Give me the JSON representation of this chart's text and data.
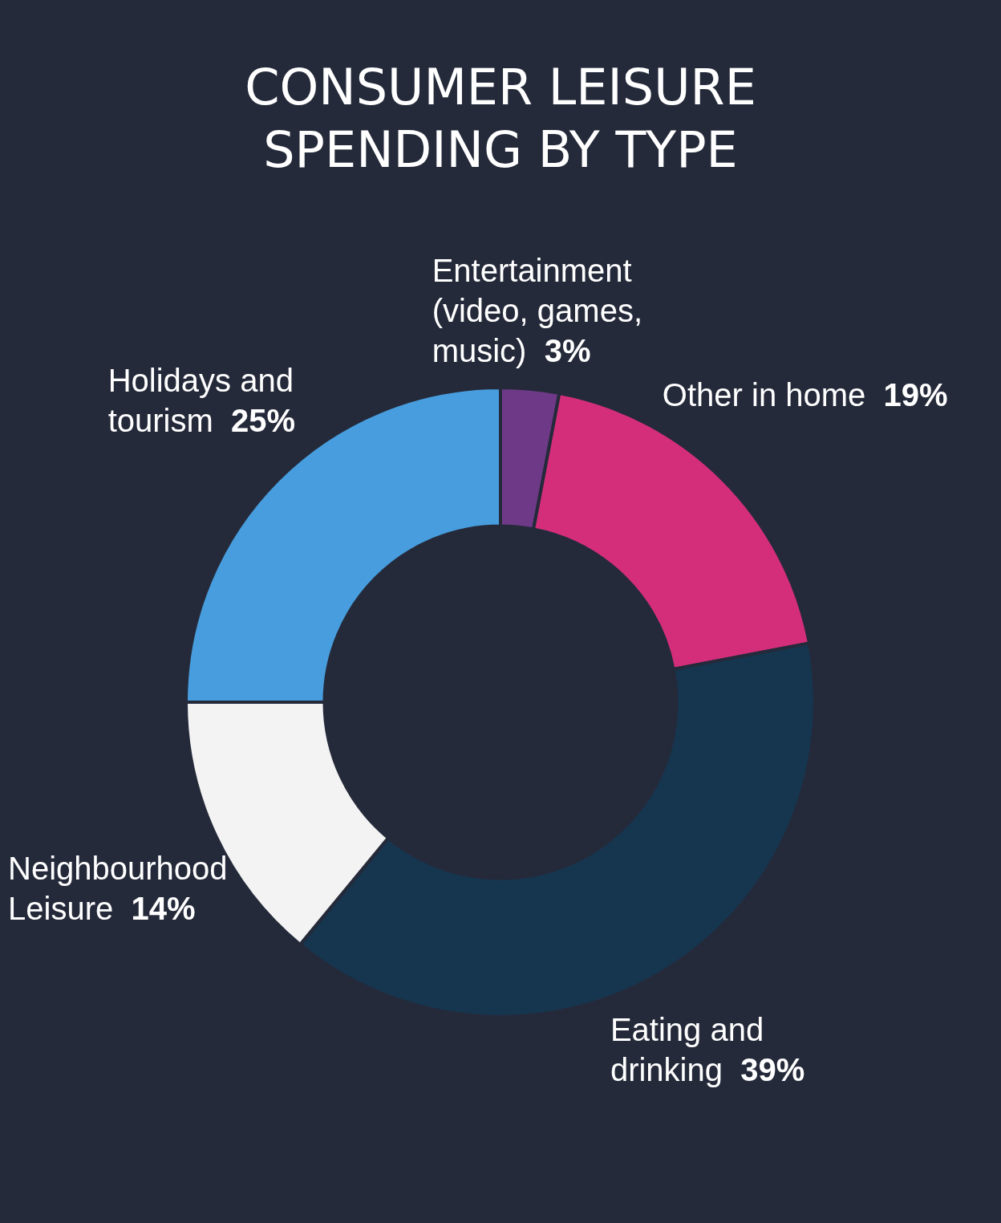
{
  "chart_data": {
    "type": "donut",
    "title": "CONSUMER LEISURE SPENDING BY TYPE",
    "categories": [
      "Entertainment (video, games, music)",
      "Other in home",
      "Eating and drinking",
      "Neighbourhood Leisure",
      "Holidays and tourism"
    ],
    "values": [
      3,
      19,
      39,
      14,
      25
    ],
    "colors": [
      "#6e3a87",
      "#d42e7b",
      "#16354f",
      "#f3f3f3",
      "#479ddd"
    ],
    "value_labels": [
      "3%",
      "19%",
      "39%",
      "14%",
      "25%"
    ],
    "legend": false
  }
}
